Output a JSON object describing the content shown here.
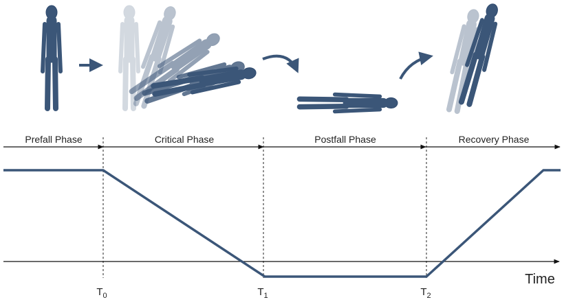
{
  "phases": [
    "Prefall Phase",
    "Critical Phase",
    "Postfall Phase",
    "Recovery Phase"
  ],
  "markers": [
    {
      "label": "T",
      "subscript": "0"
    },
    {
      "label": "T",
      "subscript": "1"
    },
    {
      "label": "T",
      "subscript": "2"
    }
  ],
  "axis_label": "Time"
}
